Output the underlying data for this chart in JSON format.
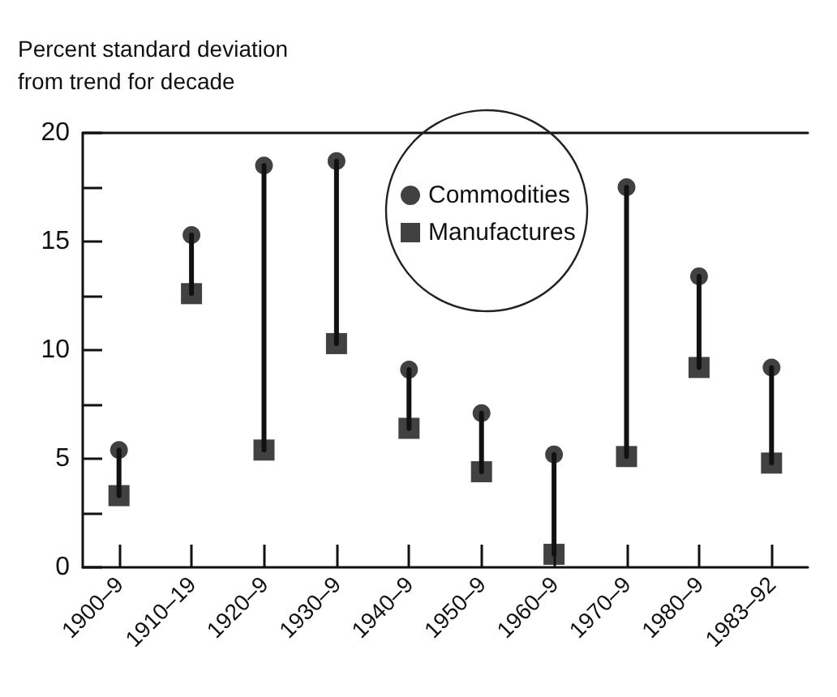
{
  "chart_data": {
    "type": "scatter",
    "ylabel": "Percent standard deviation\nfrom trend for decade",
    "categories": [
      "1900–9",
      "1910–19",
      "1920–9",
      "1930–9",
      "1940–9",
      "1950–9",
      "1960–9",
      "1970–9",
      "1980–9",
      "1983–92"
    ],
    "series": [
      {
        "name": "Commodities",
        "color": "#111111",
        "marker": "circle",
        "values": [
          5.4,
          15.3,
          18.5,
          18.7,
          9.1,
          7.1,
          5.2,
          17.5,
          13.4,
          9.2
        ]
      },
      {
        "name": "Manufactures",
        "color": "#111111",
        "marker": "square",
        "values": [
          3.3,
          12.6,
          5.4,
          10.3,
          6.4,
          4.4,
          0.6,
          5.1,
          9.2,
          4.8
        ]
      }
    ],
    "ylim": [
      0,
      20
    ],
    "yticks": [
      0,
      {
        "value": 2.5,
        "label": null
      },
      5,
      {
        "value": 7.5,
        "label": null
      },
      10,
      {
        "value": 12.5,
        "label": null
      },
      15,
      {
        "value": 17.5,
        "label": null
      },
      20
    ],
    "grid": false,
    "legend": "top",
    "line_style": "solid"
  }
}
